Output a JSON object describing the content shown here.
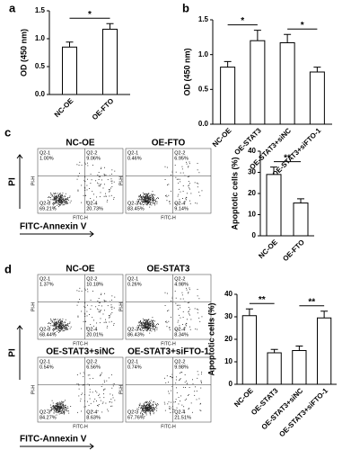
{
  "chart_data": [
    {
      "type": "bar",
      "panel_label": "a",
      "ylabel": "OD (450 nm)",
      "categories": [
        "NC-OE",
        "OE-FTO"
      ],
      "values": [
        0.85,
        1.17
      ],
      "errors": [
        0.09,
        0.1
      ],
      "ylim": [
        0,
        1.5
      ],
      "yticks": [
        {
          "value": 0,
          "label": "0.0"
        },
        0.5,
        {
          "value": 1,
          "label": "1.0"
        },
        1.5
      ],
      "annotations": [
        {
          "text": "*",
          "between": [
            "NC-OE",
            "OE-FTO"
          ]
        }
      ]
    },
    {
      "type": "bar",
      "panel_label": "b",
      "ylabel": "OD (450 nm)",
      "categories": [
        "NC-OE",
        "OE-STAT3",
        "OE-STAT3+siNC",
        "OE-STAT3+siFTO-1"
      ],
      "values": [
        0.82,
        1.2,
        1.17,
        0.75
      ],
      "errors": [
        0.08,
        0.15,
        0.12,
        0.07
      ],
      "ylim": [
        0,
        1.5
      ],
      "yticks": [
        {
          "value": 0,
          "label": "0.0"
        },
        0.5,
        {
          "value": 1,
          "label": "1.0"
        },
        1.5
      ],
      "annotations": [
        {
          "text": "*",
          "between": [
            "NC-OE",
            "OE-STAT3"
          ]
        },
        {
          "text": "*",
          "between": [
            "OE-STAT3+siNC",
            "OE-STAT3+siFTO-1"
          ]
        }
      ]
    },
    {
      "type": "flow",
      "panel_label": "c",
      "xlabel": "FITC-Annexin V",
      "ylabel": "PI",
      "x_axis_name": "FITC-H",
      "y_axis_name": "PI-H",
      "plots": [
        {
          "title": "NC-OE",
          "quadrants": [
            {
              "name": "Q2-1",
              "value": 1,
              "label": "1.00%"
            },
            {
              "name": "Q2-2",
              "value": 9.06,
              "label": "9.06%"
            },
            {
              "name": "Q2-3",
              "value": 69.21,
              "label": "69.21%"
            },
            {
              "name": "Q2-4",
              "value": 20.73,
              "label": "20.73%"
            }
          ]
        },
        {
          "title": "OE-FTO",
          "quadrants": [
            {
              "name": "Q2-1",
              "value": 0.46,
              "label": "0.46%"
            },
            {
              "name": "Q2-2",
              "value": 6.95,
              "label": "6.95%"
            },
            {
              "name": "Q2-3",
              "value": 83.45,
              "label": "83.45%"
            },
            {
              "name": "Q2-4",
              "value": 9.14,
              "label": "9.14%"
            }
          ]
        }
      ]
    },
    {
      "type": "bar",
      "panel_label": "",
      "ylabel": "Apoptotic cells (%)",
      "categories": [
        "NC-OE",
        "OE-FTO"
      ],
      "values": [
        29,
        15.5
      ],
      "errors": [
        3.5,
        2
      ],
      "ylim": [
        0,
        40
      ],
      "yticks": [
        0,
        10,
        20,
        30,
        40
      ],
      "annotations": [
        {
          "text": "**",
          "between": [
            "NC-OE",
            "OE-FTO"
          ]
        }
      ]
    },
    {
      "type": "flow",
      "panel_label": "d",
      "xlabel": "FITC-Annexin V",
      "ylabel": "PI",
      "x_axis_name": "FITC-H",
      "y_axis_name": "PI-H",
      "plots": [
        {
          "title": "NC-OE",
          "quadrants": [
            {
              "name": "Q2-1",
              "value": 1.37,
              "label": "1.37%"
            },
            {
              "name": "Q2-2",
              "value": 10.18,
              "label": "10.18%"
            },
            {
              "name": "Q2-3",
              "value": 68.44,
              "label": "68.44%"
            },
            {
              "name": "Q2-4",
              "value": 20.01,
              "label": "20.01%"
            }
          ]
        },
        {
          "title": "OE-STAT3",
          "quadrants": [
            {
              "name": "Q2-1",
              "value": 0.26,
              "label": "0.26%"
            },
            {
              "name": "Q2-2",
              "value": 4.98,
              "label": "4.98%"
            },
            {
              "name": "Q2-3",
              "value": 86.43,
              "label": "86.43%"
            },
            {
              "name": "Q2-4",
              "value": 8.34,
              "label": "8.34%"
            }
          ]
        },
        {
          "title": "OE-STAT3+siNC",
          "quadrants": [
            {
              "name": "Q2-1",
              "value": 0.54,
              "label": "0.54%"
            },
            {
              "name": "Q2-2",
              "value": 6.56,
              "label": "6.56%"
            },
            {
              "name": "Q2-3",
              "value": 84.27,
              "label": "84.27%"
            },
            {
              "name": "Q2-4",
              "value": 8.63,
              "label": "8.63%"
            }
          ]
        },
        {
          "title": "OE-STAT3+siFTO-1",
          "quadrants": [
            {
              "name": "Q2-1",
              "value": 0.74,
              "label": "0.74%"
            },
            {
              "name": "Q2-2",
              "value": 9.98,
              "label": "9.98%"
            },
            {
              "name": "Q2-3",
              "value": 67.76,
              "label": "67.76%"
            },
            {
              "name": "Q2-4",
              "value": 21.51,
              "label": "21.51%"
            }
          ]
        }
      ]
    },
    {
      "type": "bar",
      "panel_label": "",
      "ylabel": "Apoptotic cells (%)",
      "categories": [
        "NC-OE",
        "OE-STAT3",
        "OE-STAT3+siNC",
        "OE-STAT3+siFTO-1"
      ],
      "values": [
        30.5,
        14,
        15,
        29.5
      ],
      "errors": [
        3,
        1.5,
        2,
        3
      ],
      "ylim": [
        0,
        40
      ],
      "yticks": [
        0,
        10,
        20,
        30,
        40
      ],
      "annotations": [
        {
          "text": "**",
          "between": [
            "NC-OE",
            "OE-STAT3"
          ]
        },
        {
          "text": "**",
          "between": [
            "OE-STAT3+siNC",
            "OE-STAT3+siFTO-1"
          ]
        }
      ]
    }
  ]
}
